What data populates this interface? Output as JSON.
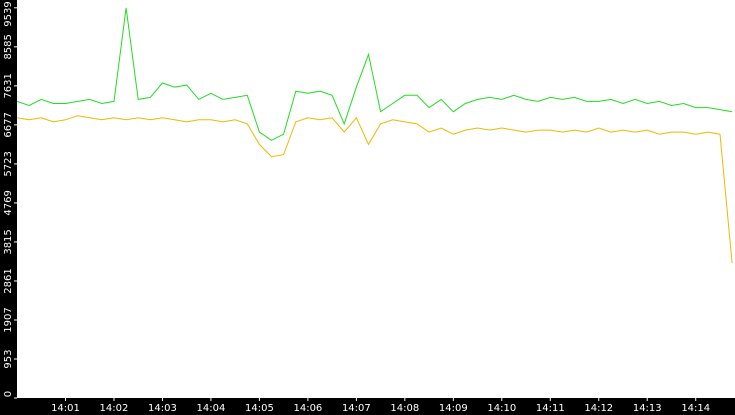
{
  "chart_data": {
    "type": "line",
    "x": [
      0,
      0.25,
      0.5,
      0.75,
      1,
      1.25,
      1.5,
      1.75,
      2,
      2.25,
      2.5,
      2.75,
      3,
      3.25,
      3.5,
      3.75,
      4,
      4.25,
      4.5,
      4.75,
      5,
      5.25,
      5.5,
      5.75,
      6,
      6.25,
      6.5,
      6.75,
      7,
      7.25,
      7.5,
      7.75,
      8,
      8.25,
      8.5,
      8.75,
      9,
      9.25,
      9.5,
      9.75,
      10,
      10.25,
      10.5,
      10.75,
      11,
      11.25,
      11.5,
      11.75,
      12,
      12.25,
      12.5,
      12.75,
      13,
      13.25,
      13.5,
      13.75,
      14,
      14.25,
      14.5,
      14.75
    ],
    "series": [
      {
        "color": "#22dd22",
        "values": [
          7250,
          7150,
          7300,
          7200,
          7200,
          7250,
          7300,
          7200,
          7250,
          9539,
          7300,
          7350,
          7700,
          7600,
          7650,
          7300,
          7450,
          7300,
          7350,
          7400,
          6500,
          6300,
          6450,
          7500,
          7450,
          7500,
          7400,
          6700,
          7600,
          8400,
          7000,
          7200,
          7400,
          7400,
          7100,
          7300,
          7000,
          7200,
          7300,
          7350,
          7300,
          7400,
          7300,
          7250,
          7350,
          7300,
          7350,
          7250,
          7250,
          7300,
          7200,
          7300,
          7200,
          7250,
          7150,
          7200,
          7100,
          7100,
          7050,
          7000
        ]
      },
      {
        "color": "#f0b800",
        "values": [
          6850,
          6800,
          6850,
          6750,
          6800,
          6900,
          6850,
          6800,
          6850,
          6800,
          6850,
          6800,
          6850,
          6800,
          6750,
          6800,
          6800,
          6750,
          6800,
          6700,
          6200,
          5900,
          5950,
          6750,
          6850,
          6800,
          6850,
          6500,
          6850,
          6200,
          6700,
          6800,
          6750,
          6700,
          6500,
          6600,
          6450,
          6550,
          6600,
          6550,
          6600,
          6550,
          6500,
          6550,
          6550,
          6500,
          6550,
          6500,
          6600,
          6500,
          6550,
          6500,
          6550,
          6450,
          6500,
          6500,
          6450,
          6500,
          6450,
          3300
        ]
      }
    ],
    "xlim": [
      0,
      14.81
    ],
    "xticks": [
      {
        "value": 1,
        "label": "14:01"
      },
      {
        "value": 2,
        "label": "14:02"
      },
      {
        "value": 3,
        "label": "14:03"
      },
      {
        "value": 4,
        "label": "14:04"
      },
      {
        "value": 5,
        "label": "14:05"
      },
      {
        "value": 6,
        "label": "14:06"
      },
      {
        "value": 7,
        "label": "14:07"
      },
      {
        "value": 8,
        "label": "14:08"
      },
      {
        "value": 9,
        "label": "14:09"
      },
      {
        "value": 10,
        "label": "14:10"
      },
      {
        "value": 11,
        "label": "14:11"
      },
      {
        "value": 12,
        "label": "14:12"
      },
      {
        "value": 13,
        "label": "14:13"
      },
      {
        "value": 14,
        "label": "14:14"
      }
    ],
    "ylim": [
      0,
      9730
    ],
    "yticks": [
      0,
      953,
      1907,
      2861,
      3815,
      4769,
      5723,
      6677,
      7631,
      8585,
      9539
    ]
  }
}
